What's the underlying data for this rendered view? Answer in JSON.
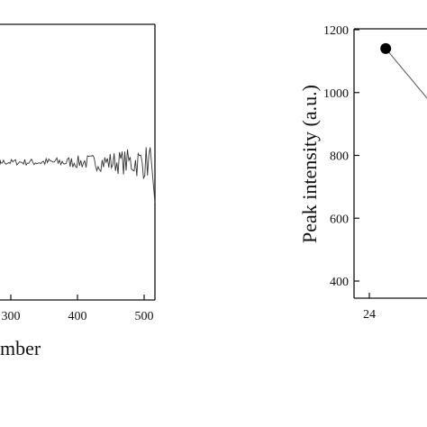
{
  "chart_data": [
    {
      "type": "line",
      "title": "",
      "xlabel": "mber",
      "ylabel": "",
      "xlim": [
        225,
        510
      ],
      "ylim": [
        -1,
        1
      ],
      "x_ticks": [
        "300",
        "400",
        "500"
      ],
      "x_tick_values": [
        300,
        400,
        500
      ],
      "grid": false,
      "legend": "none",
      "color": "#333333",
      "series": [
        {
          "description_free_values": true,
          "x": [],
          "y": []
        }
      ],
      "signal": {
        "x_start": 225,
        "x_end": 510,
        "step": 2,
        "baseline": 0.0,
        "noise_low": 0.05,
        "noise_high": 0.35
      }
    },
    {
      "type": "line",
      "title": "",
      "xlabel": "",
      "ylabel": "Peak intensity (a.u.)",
      "ylim": [
        350,
        1200
      ],
      "y_ticks": [
        "400",
        "600",
        "800",
        "1000",
        "1200"
      ],
      "y_tick_values": [
        400,
        600,
        800,
        1000,
        1200
      ],
      "x_ticks": [
        "24"
      ],
      "x_tick_values": [
        24
      ],
      "xlim": [
        23.5,
        27
      ],
      "grid": false,
      "legend": "none",
      "marker": "filled-circle",
      "color": "#000000",
      "series": [
        {
          "x": [
            24.7,
            26.5
          ],
          "y": [
            1140,
            960
          ]
        }
      ]
    }
  ]
}
